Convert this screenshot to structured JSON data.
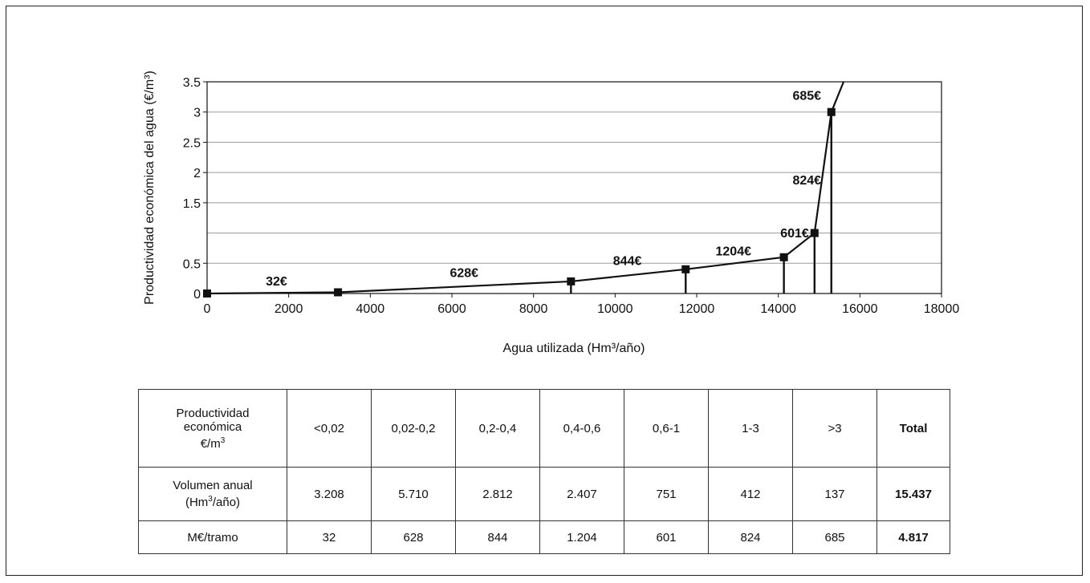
{
  "chart_data": {
    "type": "line",
    "title": "",
    "xlabel": "Agua utilizada (Hm³/año)",
    "ylabel": "Productividad económica del agua (€/m³)",
    "xlim": [
      0,
      18000
    ],
    "ylim": [
      0,
      3.5
    ],
    "x_ticks": [
      "0",
      "2000",
      "4000",
      "6000",
      "8000",
      "10000",
      "12000",
      "14000",
      "16000",
      "18000"
    ],
    "y_ticks": [
      "0",
      "0.5",
      "1.5",
      "2",
      "2.5",
      "3",
      "3.5"
    ],
    "grid": true,
    "series": [
      {
        "x": [
          0,
          3208,
          8918,
          11730,
          14137,
          14888,
          15300
        ],
        "y": [
          0,
          0.02,
          0.2,
          0.4,
          0.6,
          1.0,
          3.0
        ]
      }
    ],
    "line_extension": {
      "x": [
        15300,
        15600
      ],
      "y": [
        3.0,
        3.5
      ]
    },
    "drop_lines_x": [
      8918,
      11730,
      14137,
      14888,
      15300
    ],
    "annotations": [
      {
        "text": "32€",
        "x": 1700,
        "y": 0.13
      },
      {
        "text": "628€",
        "x": 6300,
        "y": 0.27
      },
      {
        "text": "844€",
        "x": 10300,
        "y": 0.47
      },
      {
        "text": "1204€",
        "x": 12900,
        "y": 0.63
      },
      {
        "text": "601€",
        "x": 14400,
        "y": 0.93
      },
      {
        "text": "824€",
        "x": 14700,
        "y": 1.8
      },
      {
        "text": "685€",
        "x": 14700,
        "y": 3.2
      }
    ]
  },
  "table": {
    "header_label_line1": "Productividad",
    "header_label_line2": "económica",
    "header_label_line3": "€/m",
    "header_label_sup": "3",
    "ranges": [
      "<0,02",
      "0,02-0,2",
      "0,2-0,4",
      "0,4-0,6",
      "0,6-1",
      "1-3",
      ">3"
    ],
    "total_label": "Total",
    "volume_label_line1": "Volumen anual",
    "volume_label_line2_a": "(Hm",
    "volume_label_line2_sup": "3",
    "volume_label_line2_b": "/año)",
    "volumes": [
      "3.208",
      "5.710",
      "2.812",
      "2.407",
      "751",
      "412",
      "137"
    ],
    "volume_total": "15.437",
    "meur_label": "M€/tramo",
    "meur": [
      "32",
      "628",
      "844",
      "1.204",
      "601",
      "824",
      "685"
    ],
    "meur_total": "4.817"
  }
}
